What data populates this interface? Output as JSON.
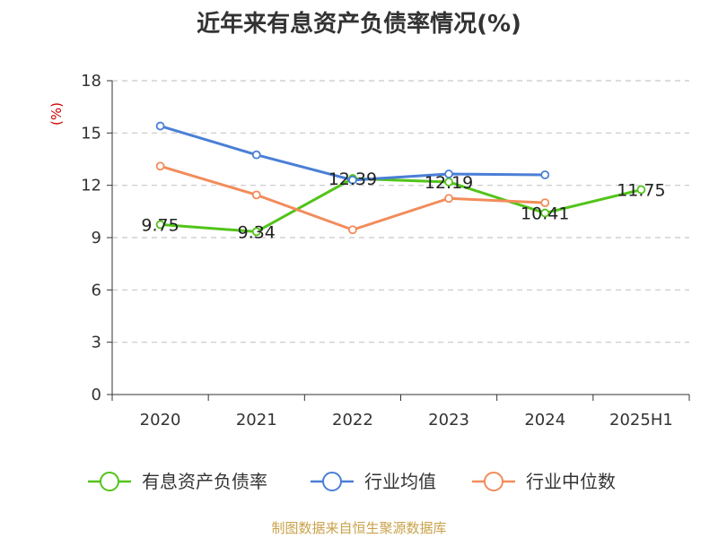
{
  "title": "近年来有息资产负债率情况(%)",
  "source": "制图数据来自恒生聚源数据库",
  "chart_data": {
    "type": "line",
    "title": "近年来有息资产负债率情况(%)",
    "ylabel": "(%)",
    "xlabel": "",
    "categories": [
      "2020",
      "2021",
      "2022",
      "2023",
      "2024",
      "2025H1"
    ],
    "ylim": [
      0,
      18
    ],
    "yticks": [
      0,
      3,
      6,
      9,
      12,
      15,
      18
    ],
    "grid": true,
    "legend_position": "bottom",
    "series": [
      {
        "name": "有息资产负债率",
        "color": "#52c41a",
        "values": [
          9.75,
          9.34,
          12.39,
          12.19,
          10.41,
          11.75
        ],
        "labels": [
          "9.75",
          "9.34",
          "12.39",
          "12.19",
          "10.41",
          "11.75"
        ]
      },
      {
        "name": "行业均值",
        "color": "#4a7fd6",
        "values": [
          15.4,
          13.75,
          12.3,
          12.65,
          12.6,
          null
        ]
      },
      {
        "name": "行业中位数",
        "color": "#f28c5a",
        "values": [
          13.1,
          11.45,
          9.45,
          11.25,
          11.0,
          null
        ]
      }
    ]
  }
}
